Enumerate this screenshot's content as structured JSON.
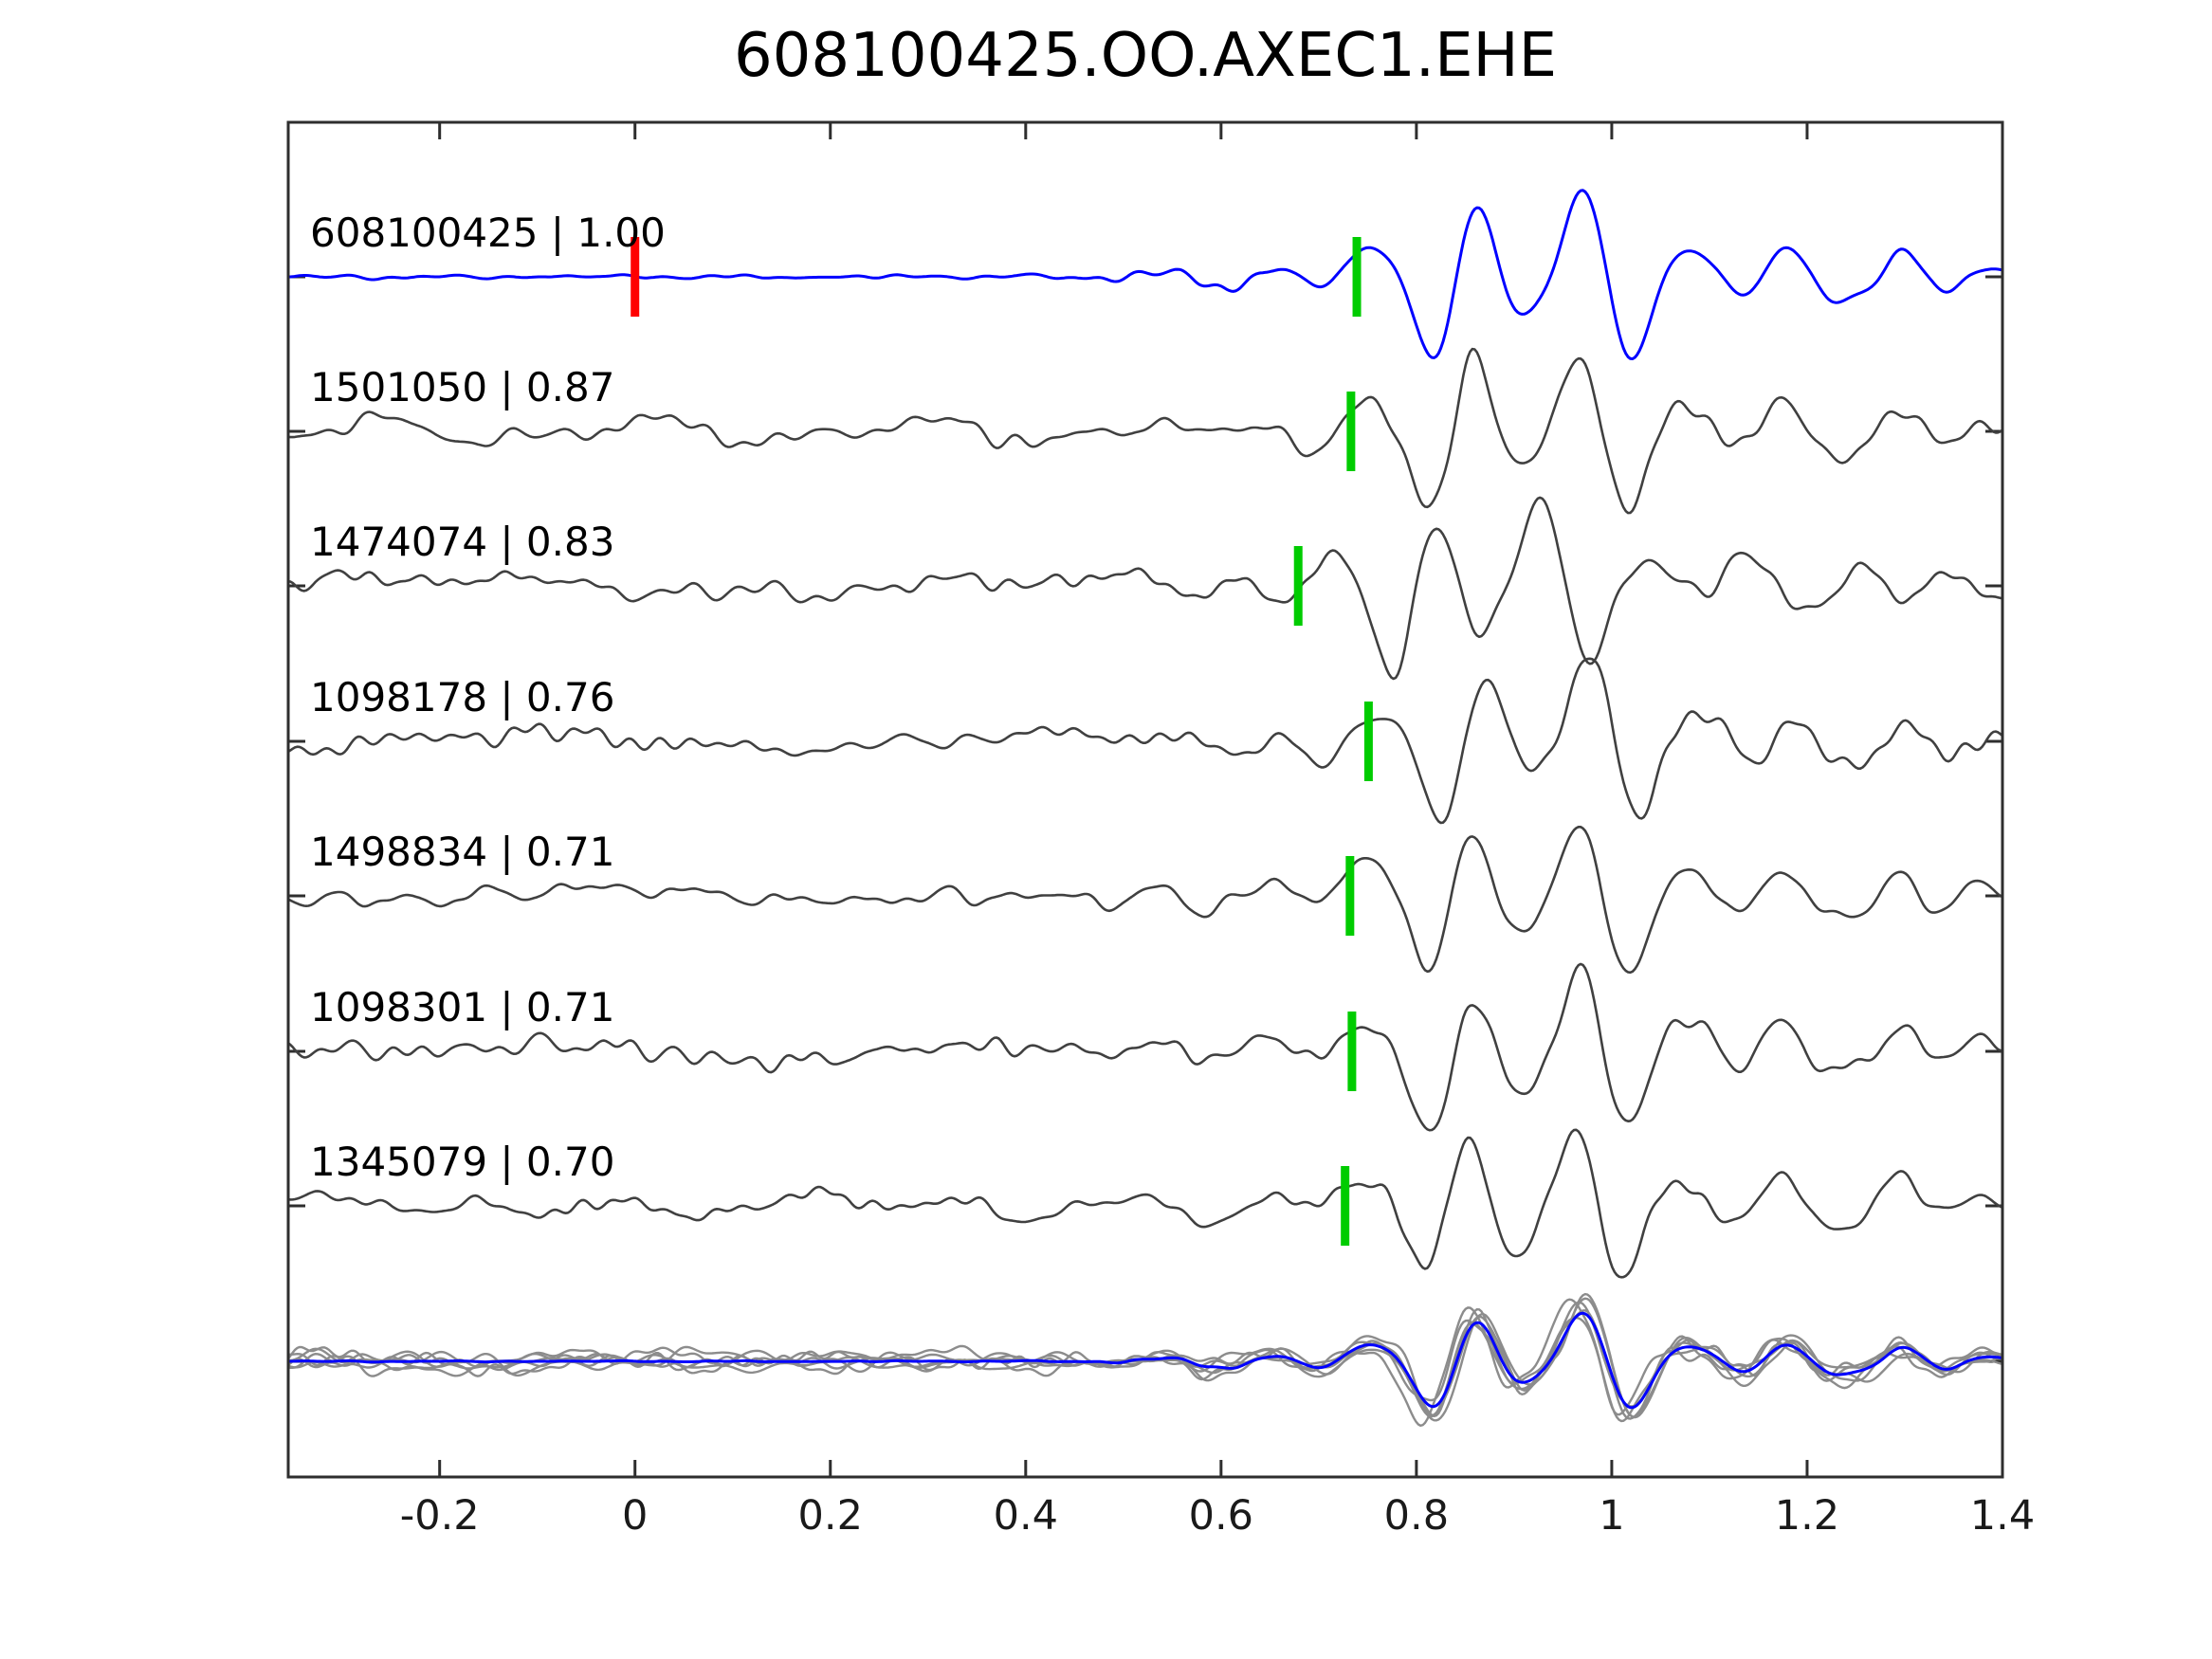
{
  "title": "608100425.OO.AXEC1.EHE",
  "chart_data": {
    "type": "line",
    "title": "608100425.OO.AXEC1.EHE",
    "description": "Template waveform (blue) compared against matched detection waveforms (dark gray), each annotated with event id and correlation value; green bars mark pick times, red bar marks template reference time; bottom row overlays all matched waveforms (gray) with the template (blue).",
    "x_axis": {
      "range": [
        -0.355,
        1.4
      ],
      "tick_values": [
        -0.2,
        0,
        0.2,
        0.4,
        0.6,
        0.8,
        1,
        1.2,
        1.4
      ],
      "tick_labels": [
        "-0.2",
        "0",
        "0.2",
        "0.4",
        "0.6",
        "0.8",
        "1",
        "1.2",
        "1.4"
      ]
    },
    "colors": {
      "template_trace": "#0000ff",
      "match_trace": "#404040",
      "overlay_trace": "#8c8c8c",
      "pick_marker": "#00cc00",
      "reference_marker": "#ff0000",
      "axis": "#2e2e2e",
      "text": "#000000"
    },
    "traces": [
      {
        "id": "608100425",
        "similarity": 1.0,
        "label": "608100425 | 1.00",
        "pick_time": 0.739,
        "reference_time": 0.0,
        "is_template": true
      },
      {
        "id": "1501050",
        "similarity": 0.87,
        "label": "1501050 | 0.87",
        "pick_time": 0.733,
        "is_template": false
      },
      {
        "id": "1474074",
        "similarity": 0.83,
        "label": "1474074 | 0.83",
        "pick_time": 0.679,
        "is_template": false
      },
      {
        "id": "1098178",
        "similarity": 0.76,
        "label": "1098178 | 0.76",
        "pick_time": 0.751,
        "is_template": false
      },
      {
        "id": "1498834",
        "similarity": 0.71,
        "label": "1498834 | 0.71",
        "pick_time": 0.732,
        "is_template": false
      },
      {
        "id": "1098301",
        "similarity": 0.71,
        "label": "1098301 | 0.71",
        "pick_time": 0.734,
        "is_template": false
      },
      {
        "id": "1345079",
        "similarity": 0.7,
        "label": "1345079 | 0.70",
        "pick_time": 0.727,
        "is_template": false
      }
    ],
    "overlay": {
      "gray_trace_count": 6,
      "includes_template": true
    }
  }
}
